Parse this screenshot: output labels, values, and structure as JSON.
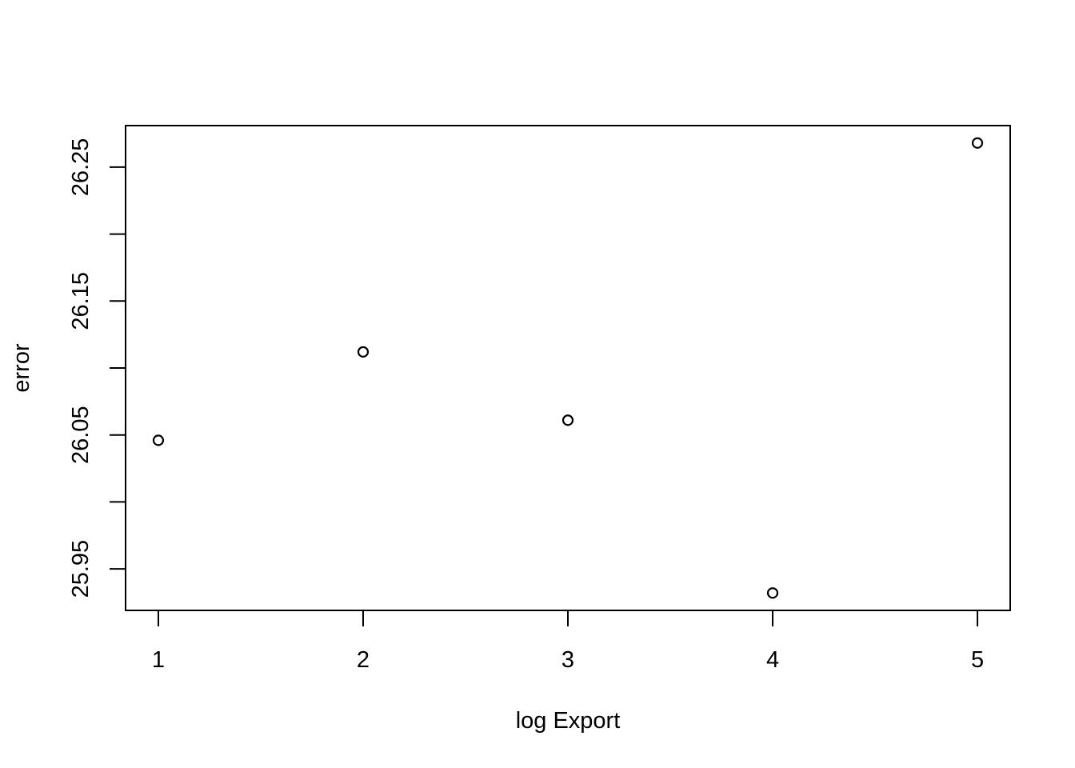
{
  "chart_data": {
    "type": "scatter",
    "xlabel": "log Export",
    "ylabel": "error",
    "x": [
      1,
      2,
      3,
      4,
      5
    ],
    "y": [
      26.046,
      26.112,
      26.061,
      25.932,
      26.268
    ],
    "xlim": [
      0.84,
      5.16
    ],
    "ylim": [
      25.919,
      26.281
    ],
    "x_ticks": [
      {
        "value": 1,
        "label": "1"
      },
      {
        "value": 2,
        "label": "2"
      },
      {
        "value": 3,
        "label": "3"
      },
      {
        "value": 4,
        "label": "4"
      },
      {
        "value": 5,
        "label": "5"
      }
    ],
    "y_ticks": [
      25.95,
      26.0,
      26.05,
      26.1,
      26.15,
      26.2,
      26.25
    ],
    "y_tick_labels": [
      {
        "value": 25.95,
        "label": "25.95"
      },
      {
        "value": 26.05,
        "label": "26.05"
      },
      {
        "value": 26.15,
        "label": "26.15"
      },
      {
        "value": 26.25,
        "label": "26.25"
      }
    ],
    "grid": false,
    "marker": "open-circle",
    "colors": {
      "ink": "#000000",
      "background": "#ffffff"
    }
  }
}
